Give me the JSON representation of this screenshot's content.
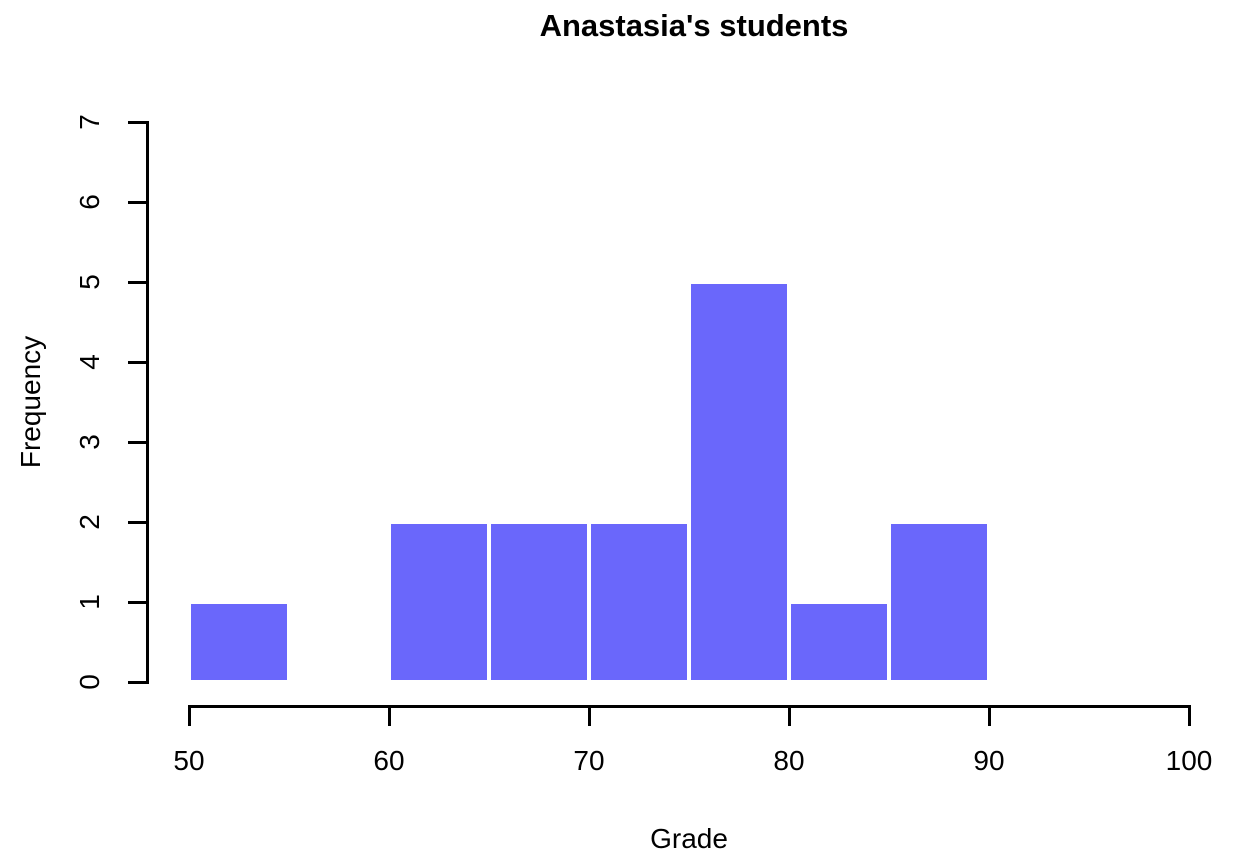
{
  "chart_data": {
    "type": "histogram",
    "title": "Anastasia's students",
    "xlabel": "Grade",
    "ylabel": "Frequency",
    "bin_edges": [
      50,
      55,
      60,
      65,
      70,
      75,
      80,
      85,
      90
    ],
    "counts": [
      1,
      0,
      2,
      2,
      2,
      5,
      1,
      2
    ],
    "x_ticks": [
      "50",
      "60",
      "70",
      "80",
      "90",
      "100"
    ],
    "x_tick_values": [
      50,
      60,
      70,
      80,
      90,
      100
    ],
    "y_ticks": [
      "0",
      "1",
      "2",
      "3",
      "4",
      "5",
      "6",
      "7"
    ],
    "y_tick_values": [
      0,
      1,
      2,
      3,
      4,
      5,
      6,
      7
    ],
    "xlim": [
      50,
      100
    ],
    "ylim": [
      0,
      7
    ],
    "grid": false,
    "legend": false,
    "bar_color": "#6a67fb",
    "bar_border_color": "#ffffff",
    "axis_color": "#000000",
    "text_color": "#000000"
  }
}
